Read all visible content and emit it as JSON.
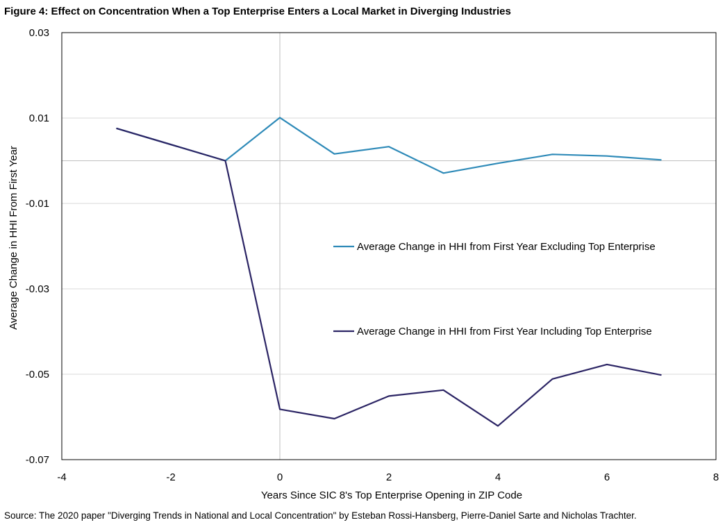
{
  "figure_title": "Figure 4: Effect on Concentration When a Top Enterprise Enters a Local Market in Diverging Industries",
  "source_note": "Source: The 2020  paper \"Diverging Trends in National and Local Concentration\" by Esteban Rossi-Hansberg, Pierre-Daniel Sarte and Nicholas Trachter.",
  "chart_data": {
    "type": "line",
    "title": "Figure 4: Effect on Concentration When a Top Enterprise Enters a Local Market in Diverging Industries",
    "xlabel": "Years Since SIC 8's Top Enterprise Opening in ZIP Code",
    "ylabel": "Average Change in HHI From First Year",
    "xlim": [
      -4,
      8
    ],
    "ylim": [
      -0.07,
      0.03
    ],
    "xticks": [
      -4,
      -2,
      0,
      2,
      4,
      6,
      8
    ],
    "xtick_labels": [
      "-4",
      "-2",
      "0",
      "2",
      "4",
      "6",
      "8"
    ],
    "yticks": [
      0.03,
      0.01,
      -0.01,
      -0.03,
      -0.05,
      -0.07
    ],
    "ytick_labels": [
      "0.03",
      "0.01",
      "-0.01",
      "-0.03",
      "-0.05",
      "-0.07"
    ],
    "grid": true,
    "reference_lines": {
      "x": 0,
      "y": 0
    },
    "series": [
      {
        "name": "Average Change in HHI from First Year Excluding Top Enterprise",
        "color": "#2E8AB8",
        "x": [
          -3,
          -1,
          0,
          1,
          2,
          3,
          4,
          5,
          6,
          7
        ],
        "values": [
          0.0076,
          0.0,
          0.0101,
          0.0016,
          0.0033,
          -0.0029,
          -0.0006,
          0.0015,
          0.0011,
          0.0002
        ]
      },
      {
        "name": "Average Change in HHI from First Year Including Top Enterprise",
        "color": "#2B2464",
        "x": [
          -3,
          -1,
          0,
          1,
          2,
          3,
          4,
          5,
          6,
          7
        ],
        "values": [
          0.0076,
          0.0,
          -0.0582,
          -0.0604,
          -0.0551,
          -0.0537,
          -0.0621,
          -0.0511,
          -0.0477,
          -0.0502
        ]
      }
    ],
    "legend_position": "center-right"
  }
}
